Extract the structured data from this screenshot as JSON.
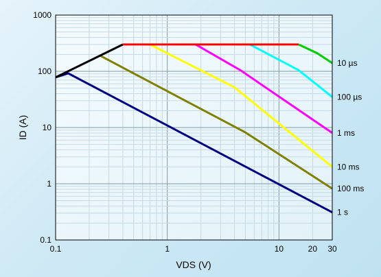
{
  "chart_data": {
    "type": "line",
    "xscale": "log",
    "yscale": "log",
    "xlim": [
      0.1,
      30
    ],
    "ylim": [
      0.1,
      1000
    ],
    "xlabel": "VDS (V)",
    "ylabel": "ID (A)",
    "grid": true,
    "x_ticks": [
      {
        "value": 0.1,
        "label": "0.1"
      },
      {
        "value": 1,
        "label": "1"
      },
      {
        "value": 10,
        "label": "10"
      },
      {
        "value": 20,
        "label": "20"
      },
      {
        "value": 30,
        "label": "30"
      }
    ],
    "y_ticks": [
      {
        "value": 0.1,
        "label": "0.1"
      },
      {
        "value": 1,
        "label": "1"
      },
      {
        "value": 10,
        "label": "10"
      },
      {
        "value": 100,
        "label": "100"
      },
      {
        "value": 1000,
        "label": "1000"
      }
    ],
    "series": [
      {
        "name": "1 s",
        "color": "#000080",
        "points": [
          [
            0.1,
            78
          ],
          [
            0.13,
            92
          ],
          [
            30,
            0.31
          ]
        ]
      },
      {
        "name": "100 ms",
        "color": "#808000",
        "points": [
          [
            0.25,
            190
          ],
          [
            5,
            8.2
          ],
          [
            30,
            0.82
          ]
        ]
      },
      {
        "name": "10 ms",
        "color": "#ffff00",
        "points": [
          [
            0.7,
            300
          ],
          [
            4,
            52
          ],
          [
            30,
            2
          ]
        ]
      },
      {
        "name": "1 ms",
        "color": "#ff00ff",
        "points": [
          [
            1.8,
            300
          ],
          [
            4.5,
            105
          ],
          [
            30,
            8
          ]
        ]
      },
      {
        "name": "100 µs",
        "color": "#00ffff",
        "points": [
          [
            5.5,
            300
          ],
          [
            15,
            105
          ],
          [
            30,
            35
          ]
        ]
      },
      {
        "name": "10 µs",
        "color": "#00cc00",
        "points": [
          [
            15,
            300
          ],
          [
            22,
            210
          ],
          [
            30,
            140
          ]
        ]
      }
    ],
    "boundary": [
      {
        "color": "#000000",
        "points": [
          [
            0.1,
            78
          ],
          [
            0.4,
            300
          ]
        ]
      },
      {
        "color": "#ff0000",
        "points": [
          [
            0.4,
            300
          ],
          [
            15,
            300
          ]
        ]
      }
    ]
  }
}
